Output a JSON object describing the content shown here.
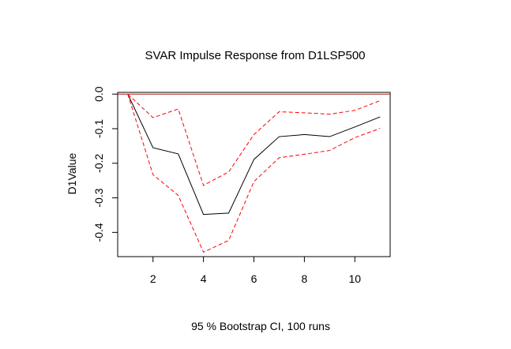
{
  "chart_data": {
    "type": "line",
    "title": "SVAR Impulse Response from D1LSP500",
    "xlabel": "95 % Bootstrap CI,  100 runs",
    "ylabel": "D1Value",
    "xlim": [
      0.6,
      11.4
    ],
    "ylim": [
      -0.47,
      0.005
    ],
    "x_ticks": [
      2,
      4,
      6,
      8,
      10
    ],
    "y_ticks": [
      0.0,
      -0.1,
      -0.2,
      -0.3,
      -0.4
    ],
    "x_tick_labels": [
      "2",
      "4",
      "6",
      "8",
      "10"
    ],
    "y_tick_labels": [
      "0.0",
      "-0.1",
      "-0.2",
      "-0.3",
      "-0.4"
    ],
    "zero_line": 0.0,
    "grid": false,
    "x": [
      1,
      2,
      3,
      4,
      5,
      6,
      7,
      8,
      9,
      10,
      11
    ],
    "series": [
      {
        "role": "response",
        "values": [
          0.0,
          -0.155,
          -0.173,
          -0.348,
          -0.344,
          -0.189,
          -0.123,
          -0.117,
          -0.123,
          -0.095,
          -0.066
        ],
        "color": "#000000",
        "dash": "solid"
      },
      {
        "role": "upper",
        "values": [
          0.0,
          -0.068,
          -0.043,
          -0.264,
          -0.225,
          -0.117,
          -0.051,
          -0.054,
          -0.058,
          -0.047,
          -0.019
        ],
        "color": "#ff0000",
        "dash": "dashed"
      },
      {
        "role": "lower",
        "values": [
          0.0,
          -0.233,
          -0.293,
          -0.457,
          -0.423,
          -0.253,
          -0.184,
          -0.174,
          -0.163,
          -0.126,
          -0.099
        ],
        "color": "#ff0000",
        "dash": "dashed"
      }
    ],
    "zero_line_color": "#b22222"
  }
}
